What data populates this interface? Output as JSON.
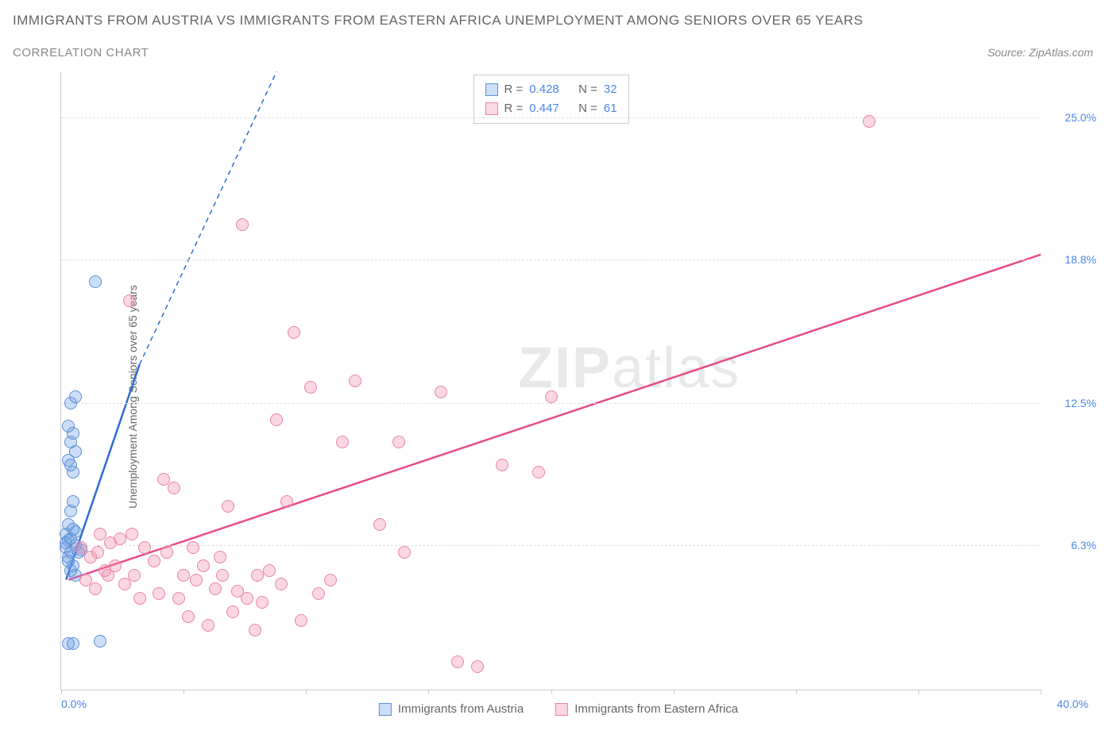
{
  "title": "IMMIGRANTS FROM AUSTRIA VS IMMIGRANTS FROM EASTERN AFRICA UNEMPLOYMENT AMONG SENIORS OVER 65 YEARS",
  "subtitle": "CORRELATION CHART",
  "source": "Source: ZipAtlas.com",
  "y_axis_label": "Unemployment Among Seniors over 65 years",
  "watermark_zip": "ZIP",
  "watermark_atlas": "atlas",
  "chart": {
    "type": "scatter",
    "xlim": [
      0,
      40
    ],
    "ylim": [
      0,
      27
    ],
    "x_min_label": "0.0%",
    "x_max_label": "40.0%",
    "y_ticks": [
      {
        "value": 6.3,
        "label": "6.3%"
      },
      {
        "value": 12.5,
        "label": "12.5%"
      },
      {
        "value": 18.8,
        "label": "18.8%"
      },
      {
        "value": 25.0,
        "label": "25.0%"
      }
    ],
    "x_tick_positions": [
      0,
      5,
      10,
      15,
      20,
      25,
      30,
      35,
      40
    ],
    "grid_color": "#e0e0e0",
    "background": "#ffffff",
    "series": [
      {
        "name": "Immigrants from Austria",
        "marker_fill": "rgba(110,160,230,0.35)",
        "marker_stroke": "#5b8fd6",
        "marker_radius_px": 8,
        "trend_color": "#2e6bd6",
        "trend_width": 2.5,
        "trend_solid": {
          "x1": 0.2,
          "y1": 4.8,
          "x2": 3.2,
          "y2": 14.2
        },
        "trend_dash": {
          "x1": 3.2,
          "y1": 14.2,
          "x2": 8.8,
          "y2": 27.0
        },
        "points": [
          [
            0.2,
            6.2
          ],
          [
            0.3,
            6.5
          ],
          [
            0.4,
            6.0
          ],
          [
            0.3,
            5.8
          ],
          [
            0.6,
            6.3
          ],
          [
            0.5,
            5.4
          ],
          [
            0.4,
            7.8
          ],
          [
            0.5,
            8.2
          ],
          [
            0.3,
            10.0
          ],
          [
            0.6,
            10.4
          ],
          [
            0.4,
            10.8
          ],
          [
            0.5,
            11.2
          ],
          [
            0.4,
            12.5
          ],
          [
            0.6,
            12.8
          ],
          [
            1.4,
            17.8
          ],
          [
            0.3,
            2.0
          ],
          [
            0.5,
            2.0
          ],
          [
            1.6,
            2.1
          ],
          [
            0.6,
            5.0
          ],
          [
            0.4,
            5.2
          ],
          [
            0.8,
            6.1
          ],
          [
            0.2,
            6.8
          ],
          [
            0.6,
            6.9
          ],
          [
            0.3,
            7.2
          ],
          [
            0.5,
            9.5
          ],
          [
            0.4,
            9.8
          ],
          [
            0.3,
            11.5
          ],
          [
            0.2,
            6.4
          ],
          [
            0.7,
            6.0
          ],
          [
            0.3,
            5.6
          ],
          [
            0.4,
            6.6
          ],
          [
            0.5,
            7.0
          ]
        ]
      },
      {
        "name": "Immigrants from Eastern Africa",
        "marker_fill": "rgba(240,140,170,0.35)",
        "marker_stroke": "#e984a8",
        "marker_radius_px": 8,
        "trend_color": "#e84a8a",
        "trend_width": 2.5,
        "trend_solid": {
          "x1": 0.3,
          "y1": 4.8,
          "x2": 40.0,
          "y2": 19.0
        },
        "points": [
          [
            0.8,
            6.2
          ],
          [
            1.2,
            5.8
          ],
          [
            1.5,
            6.0
          ],
          [
            1.8,
            5.2
          ],
          [
            2.0,
            6.4
          ],
          [
            2.2,
            5.4
          ],
          [
            1.0,
            4.8
          ],
          [
            1.4,
            4.4
          ],
          [
            2.6,
            4.6
          ],
          [
            3.0,
            5.0
          ],
          [
            1.6,
            6.8
          ],
          [
            2.4,
            6.6
          ],
          [
            2.8,
            17.0
          ],
          [
            3.4,
            6.2
          ],
          [
            3.8,
            5.6
          ],
          [
            4.0,
            4.2
          ],
          [
            4.3,
            6.0
          ],
          [
            4.6,
            8.8
          ],
          [
            5.0,
            5.0
          ],
          [
            5.2,
            3.2
          ],
          [
            5.5,
            4.8
          ],
          [
            5.8,
            5.4
          ],
          [
            6.0,
            2.8
          ],
          [
            6.3,
            4.4
          ],
          [
            6.6,
            5.0
          ],
          [
            6.8,
            8.0
          ],
          [
            7.0,
            3.4
          ],
          [
            7.2,
            4.3
          ],
          [
            7.4,
            20.3
          ],
          [
            7.6,
            4.0
          ],
          [
            7.9,
            2.6
          ],
          [
            8.2,
            3.8
          ],
          [
            8.5,
            5.2
          ],
          [
            8.8,
            11.8
          ],
          [
            9.0,
            4.6
          ],
          [
            9.2,
            8.2
          ],
          [
            9.5,
            15.6
          ],
          [
            9.8,
            3.0
          ],
          [
            10.2,
            13.2
          ],
          [
            10.5,
            4.2
          ],
          [
            11.0,
            4.8
          ],
          [
            11.5,
            10.8
          ],
          [
            12.0,
            13.5
          ],
          [
            13.0,
            7.2
          ],
          [
            13.8,
            10.8
          ],
          [
            14.0,
            6.0
          ],
          [
            15.5,
            13.0
          ],
          [
            16.2,
            1.2
          ],
          [
            17.0,
            1.0
          ],
          [
            18.0,
            9.8
          ],
          [
            19.5,
            9.5
          ],
          [
            20.0,
            12.8
          ],
          [
            4.2,
            9.2
          ],
          [
            5.4,
            6.2
          ],
          [
            3.2,
            4.0
          ],
          [
            2.9,
            6.8
          ],
          [
            1.9,
            5.0
          ],
          [
            6.5,
            5.8
          ],
          [
            33.0,
            24.8
          ],
          [
            8.0,
            5.0
          ],
          [
            4.8,
            4.0
          ]
        ]
      }
    ],
    "stats_box": {
      "rows": [
        {
          "swatch_fill": "rgba(110,160,230,0.35)",
          "swatch_stroke": "#5b8fd6",
          "r_label": "R =",
          "r_val": "0.428",
          "n_label": "N =",
          "n_val": "32"
        },
        {
          "swatch_fill": "rgba(240,140,170,0.35)",
          "swatch_stroke": "#e984a8",
          "r_label": "R =",
          "r_val": "0.447",
          "n_label": "N =",
          "n_val": "61"
        }
      ]
    },
    "bottom_legend": [
      {
        "swatch_fill": "rgba(110,160,230,0.35)",
        "swatch_stroke": "#5b8fd6",
        "label": "Immigrants from Austria"
      },
      {
        "swatch_fill": "rgba(240,140,170,0.35)",
        "swatch_stroke": "#e984a8",
        "label": "Immigrants from Eastern Africa"
      }
    ]
  }
}
